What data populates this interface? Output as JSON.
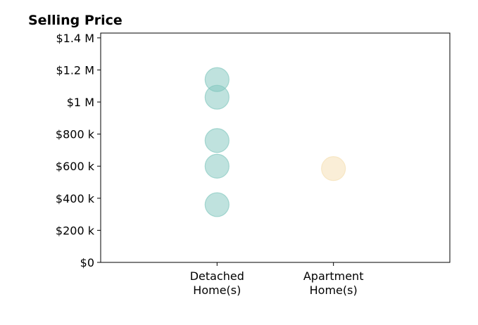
{
  "chart_data": {
    "type": "scatter",
    "title": "Selling Price",
    "xlabel": "",
    "ylabel": "",
    "categories": [
      [
        "Detached",
        "Home(s)"
      ],
      [
        "Apartment",
        "Home(s)"
      ]
    ],
    "x_range": [
      -1,
      2
    ],
    "ylim": [
      0,
      1430000
    ],
    "y_ticks": [
      {
        "value": 0,
        "label": "$0"
      },
      {
        "value": 200000,
        "label": "$200 k"
      },
      {
        "value": 400000,
        "label": "$400 k"
      },
      {
        "value": 600000,
        "label": "$600 k"
      },
      {
        "value": 800000,
        "label": "$800 k"
      },
      {
        "value": 1000000,
        "label": "$1 M"
      },
      {
        "value": 1200000,
        "label": "$1.2 M"
      },
      {
        "value": 1400000,
        "label": "$1.4 M"
      }
    ],
    "series": [
      {
        "color": "#7fc6bd",
        "category": 0,
        "values": [
          360000,
          600000,
          760000,
          1030000,
          1140000
        ]
      },
      {
        "color": "#f5deb0",
        "category": 1,
        "values": [
          585000
        ]
      }
    ],
    "grid": false,
    "legend": "none"
  }
}
